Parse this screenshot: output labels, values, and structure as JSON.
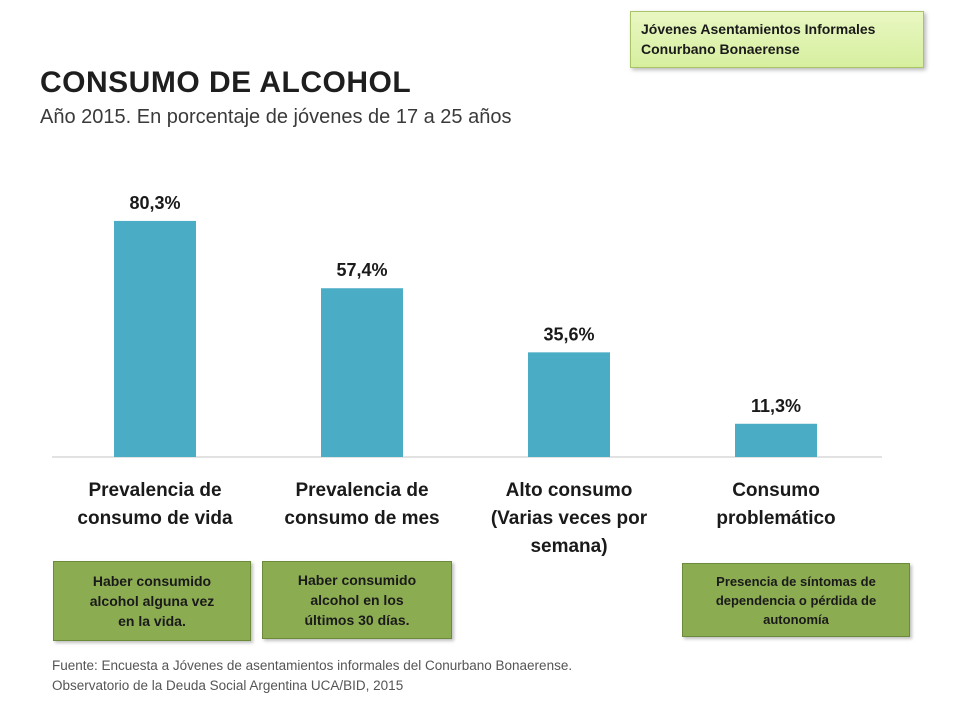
{
  "badge": {
    "line1": "Jóvenes Asentamientos Informales",
    "line2": "Conurbano Bonaerense"
  },
  "header": {
    "title": "CONSUMO DE ALCOHOL",
    "subtitle": "Año 2015.  En porcentaje de jóvenes de 17 a 25 años"
  },
  "chart_data": {
    "type": "bar",
    "categories": [
      [
        "Prevalencia de",
        "consumo de vida"
      ],
      [
        "Prevalencia de",
        "consumo de mes"
      ],
      [
        "Alto consumo",
        "(Varias veces por",
        "semana)"
      ],
      [
        "Consumo",
        "problemático"
      ]
    ],
    "values": [
      80.3,
      57.4,
      35.6,
      11.3
    ],
    "value_labels": [
      "80,3%",
      "57,4%",
      "35,6%",
      "11,3%"
    ],
    "ylim": [
      0,
      100
    ],
    "bar_color": "#4bacc6",
    "grid": false
  },
  "notes": {
    "vida": [
      "Haber consumido",
      "alcohol alguna vez",
      "en la vida."
    ],
    "mes": [
      "Haber consumido",
      "alcohol en  los",
      "últimos 30 días."
    ],
    "problematico": [
      "Presencia de síntomas de",
      "dependencia o pérdida de",
      "autonomía"
    ]
  },
  "source": {
    "line1": "Fuente: Encuesta a Jóvenes de asentamientos informales del Conurbano Bonaerense.",
    "line2": "Observatorio de la Deuda Social Argentina UCA/BID, 2015"
  },
  "colors": {
    "bar": "#4bacc6",
    "note_fill": "#8cac52",
    "badge_fill": "#dff3b0"
  }
}
